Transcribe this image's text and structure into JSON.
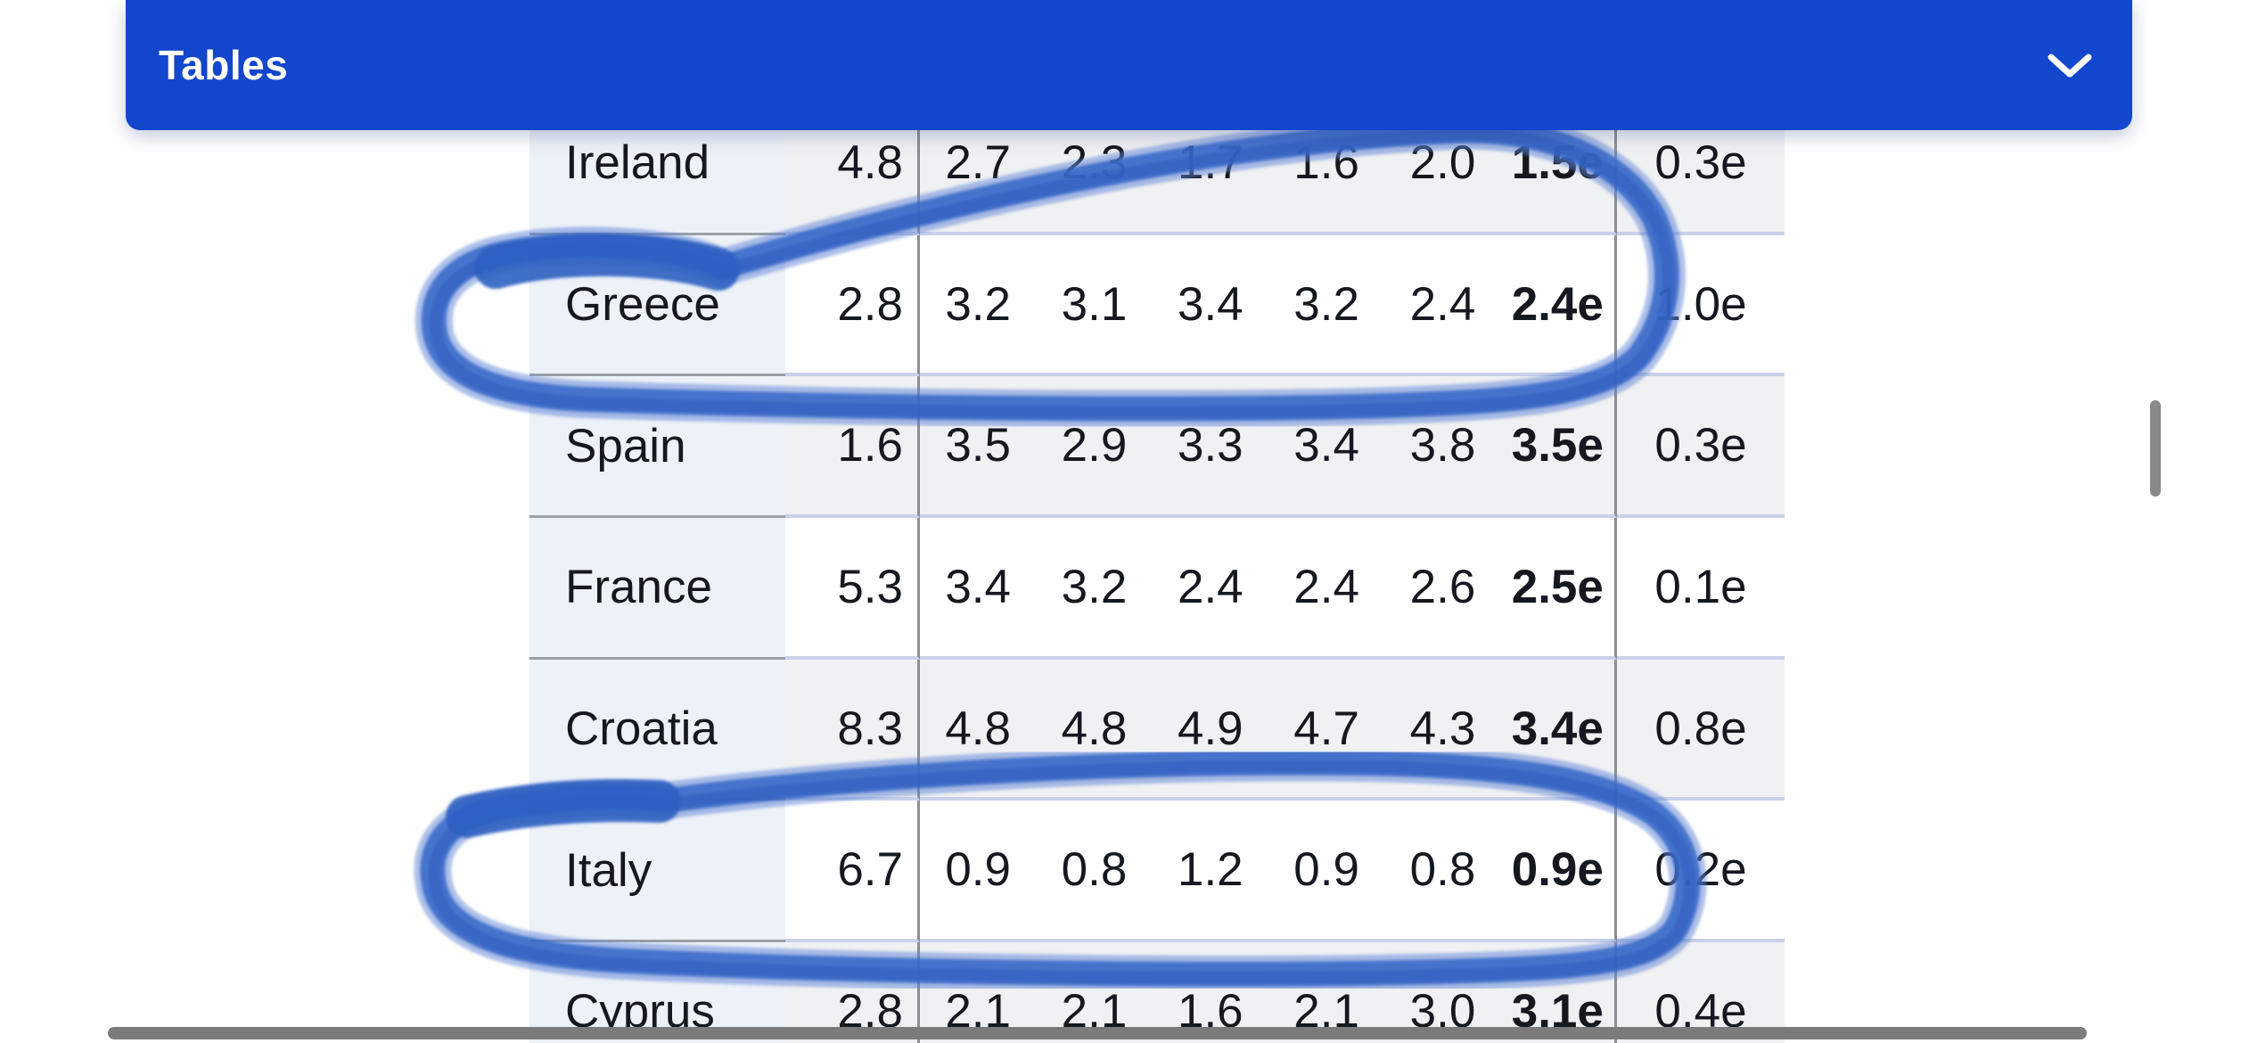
{
  "header": {
    "title": "Tables",
    "chevron_icon": "chevron-down"
  },
  "table": {
    "rows": [
      {
        "country": "Ireland",
        "col1": "4.8",
        "mid": [
          "2.7",
          "2.3",
          "1.7",
          "1.6",
          "2.0"
        ],
        "bold": "1.5e",
        "last": "0.3e"
      },
      {
        "country": "Greece",
        "col1": "2.8",
        "mid": [
          "3.2",
          "3.1",
          "3.4",
          "3.2",
          "2.4"
        ],
        "bold": "2.4e",
        "last": "1.0e"
      },
      {
        "country": "Spain",
        "col1": "1.6",
        "mid": [
          "3.5",
          "2.9",
          "3.3",
          "3.4",
          "3.8"
        ],
        "bold": "3.5e",
        "last": "0.3e"
      },
      {
        "country": "France",
        "col1": "5.3",
        "mid": [
          "3.4",
          "3.2",
          "2.4",
          "2.4",
          "2.6"
        ],
        "bold": "2.5e",
        "last": "0.1e"
      },
      {
        "country": "Croatia",
        "col1": "8.3",
        "mid": [
          "4.8",
          "4.8",
          "4.9",
          "4.7",
          "4.3"
        ],
        "bold": "3.4e",
        "last": "0.8e"
      },
      {
        "country": "Italy",
        "col1": "6.7",
        "mid": [
          "0.9",
          "0.8",
          "1.2",
          "0.9",
          "0.8"
        ],
        "bold": "0.9e",
        "last": "0.2e"
      },
      {
        "country": "Cyprus",
        "col1": "2.8",
        "mid": [
          "2.1",
          "2.1",
          "1.6",
          "2.1",
          "3.0"
        ],
        "bold": "3.1e",
        "last": "0.4e"
      }
    ]
  },
  "annotations": {
    "marker_color": "#3566c8",
    "circled_countries": [
      "Greece",
      "Italy"
    ]
  },
  "colors": {
    "header_bg": "#1246cd",
    "country_col_bg": "#edf1f8",
    "shaded_row_bg": "#f0f1f3",
    "row_divider_blue": "#c9d1e9",
    "row_divider_gray": "#9aa0a6",
    "column_border": "#8b8e93",
    "scrollbar_gray": "#898989"
  }
}
